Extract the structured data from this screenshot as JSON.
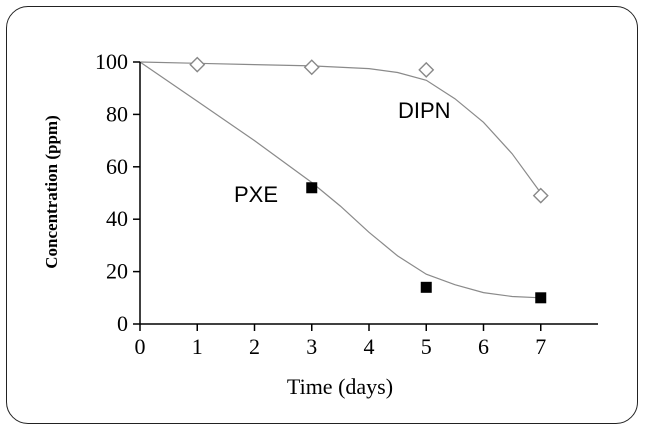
{
  "chart_data": {
    "type": "scatter",
    "title": "",
    "xlabel": "Time (days)",
    "ylabel": "Concentration (ppm)",
    "xlim": [
      0,
      8
    ],
    "ylim": [
      0,
      100
    ],
    "x_ticks": [
      0,
      1,
      2,
      3,
      4,
      5,
      6,
      7
    ],
    "y_ticks": [
      0,
      20,
      40,
      60,
      80,
      100
    ],
    "grid": false,
    "series": [
      {
        "name": "DIPN",
        "marker": "open-diamond",
        "color": "#888888",
        "x": [
          1,
          3,
          5,
          7
        ],
        "y": [
          99,
          98,
          97,
          49
        ],
        "fit_curve": {
          "x": [
            0,
            1,
            2,
            3,
            4,
            4.5,
            5,
            5.5,
            6,
            6.5,
            7
          ],
          "y": [
            100,
            99.5,
            99,
            98.5,
            97.5,
            96,
            93,
            86,
            77,
            65,
            50
          ]
        }
      },
      {
        "name": "PXE",
        "marker": "filled-square",
        "color": "#000000",
        "x": [
          3,
          5,
          7
        ],
        "y": [
          52,
          14,
          10
        ],
        "fit_curve": {
          "x": [
            0,
            1,
            2,
            3,
            3.5,
            4,
            4.5,
            5,
            5.5,
            6,
            6.5,
            7
          ],
          "y": [
            100,
            85,
            70,
            54,
            45,
            35,
            26,
            19,
            15,
            12,
            10.5,
            10
          ]
        }
      }
    ]
  }
}
